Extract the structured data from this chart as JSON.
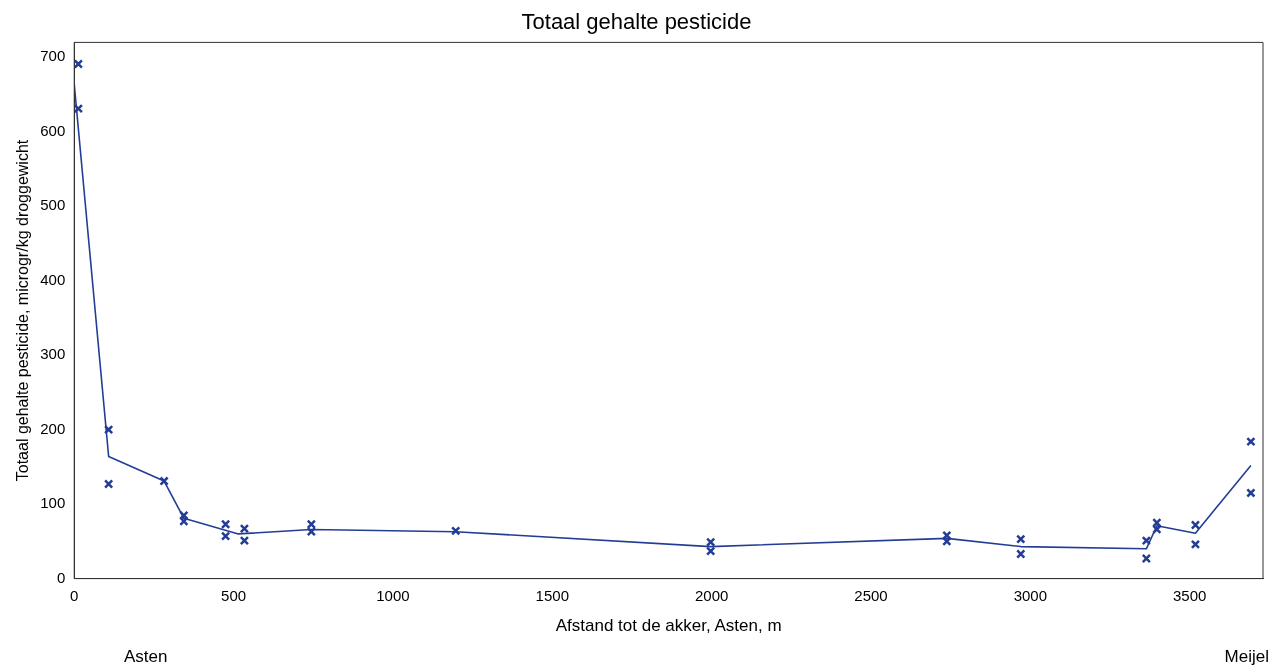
{
  "chart_data": {
    "type": "scatter",
    "title": "Totaal gehalte pesticide",
    "xlabel": "Afstand tot de akker, Asten, m",
    "ylabel": "Totaal gehalte pesticide, microgr/kg droggewicht",
    "xlim": [
      0,
      3730
    ],
    "xticks": [
      0,
      500,
      1000,
      1500,
      2000,
      2500,
      3000,
      3500
    ],
    "ylim": [
      0,
      720
    ],
    "yticks": [
      0,
      100,
      200,
      300,
      400,
      500,
      600,
      700
    ],
    "grid": false,
    "legend": false,
    "marker": "cross",
    "annotations": [
      "Asten",
      "Meijel"
    ],
    "series": [
      {
        "color": "#233d96",
        "x": [
          13,
          13,
          108,
          108,
          282,
          344,
          344,
          475,
          475,
          534,
          534,
          744,
          744,
          1197,
          1997,
          1997,
          2738,
          2738,
          2970,
          2970,
          3364,
          3364,
          3397,
          3397,
          3518,
          3518,
          3692,
          3692
        ],
        "values": [
          691,
          631,
          200,
          127,
          131,
          85,
          77,
          73,
          57,
          67,
          51,
          73,
          63,
          64,
          49,
          37,
          58,
          50,
          53,
          33,
          51,
          27,
          75,
          66,
          72,
          46,
          184,
          115
        ]
      },
      {
        "type": "line",
        "marker": "none",
        "color": "#233d96",
        "x": [
          0,
          108,
          282,
          344,
          515,
          744,
          1197,
          1997,
          2738,
          2970,
          3364,
          3397,
          3518,
          3692
        ],
        "values": [
          664,
          164,
          131,
          81,
          60,
          66,
          63,
          43,
          54,
          43,
          40,
          71,
          61,
          152
        ]
      }
    ]
  }
}
